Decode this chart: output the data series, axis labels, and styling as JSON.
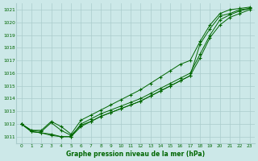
{
  "title": "Graphe pression niveau de la mer (hPa)",
  "bg_color": "#cce8e8",
  "line_color": "#006600",
  "grid_color": "#aacccc",
  "xlim": [
    -0.5,
    23.5
  ],
  "ylim": [
    1010.5,
    1021.5
  ],
  "yticks": [
    1011,
    1012,
    1013,
    1014,
    1015,
    1016,
    1017,
    1018,
    1019,
    1020,
    1021
  ],
  "xticks": [
    0,
    1,
    2,
    3,
    4,
    5,
    6,
    7,
    8,
    9,
    10,
    11,
    12,
    13,
    14,
    15,
    16,
    17,
    18,
    19,
    20,
    21,
    22,
    23
  ],
  "series": [
    [
      1012.0,
      1011.5,
      1011.4,
      1012.1,
      1011.5,
      1011.1,
      1011.9,
      1012.2,
      1012.6,
      1012.9,
      1013.2,
      1013.5,
      1013.8,
      1014.2,
      1014.6,
      1015.0,
      1015.4,
      1015.8,
      1018.3,
      1019.5,
      1020.5,
      1020.7,
      1021.0,
      1021.1
    ],
    [
      1012.0,
      1011.4,
      1011.3,
      1011.2,
      1011.0,
      1011.0,
      1012.0,
      1012.4,
      1012.8,
      1013.1,
      1013.4,
      1013.7,
      1014.0,
      1014.4,
      1014.8,
      1015.2,
      1015.6,
      1016.0,
      1017.5,
      1019.0,
      1020.2,
      1020.6,
      1020.9,
      1021.1
    ],
    [
      1012.0,
      1011.4,
      1011.3,
      1011.1,
      1011.0,
      1011.0,
      1011.8,
      1012.2,
      1012.6,
      1012.9,
      1013.2,
      1013.5,
      1013.8,
      1014.2,
      1014.6,
      1015.0,
      1015.4,
      1015.8,
      1017.2,
      1018.8,
      1019.8,
      1020.4,
      1020.7,
      1021.0
    ],
    [
      1012.0,
      1011.5,
      1011.5,
      1012.2,
      1011.8,
      1011.2,
      1012.3,
      1012.7,
      1013.1,
      1013.5,
      1013.9,
      1014.3,
      1014.7,
      1015.2,
      1015.7,
      1016.2,
      1016.7,
      1017.0,
      1018.5,
      1019.8,
      1020.7,
      1021.0,
      1021.1,
      1021.2
    ]
  ]
}
